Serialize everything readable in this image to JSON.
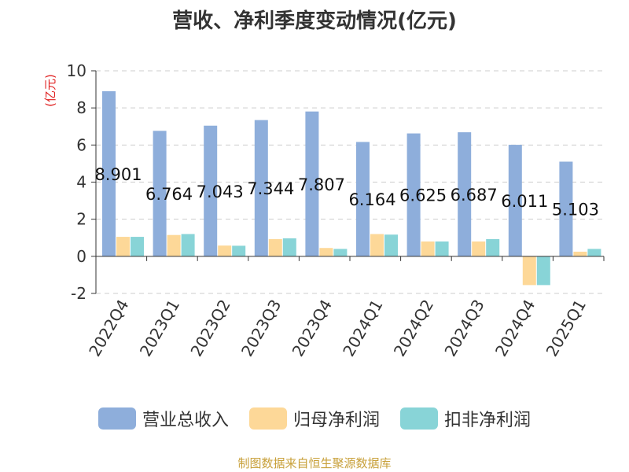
{
  "chart_data": {
    "type": "bar",
    "title": "营收、净利季度变动情况(亿元)",
    "ylabel": "(亿元)",
    "xlabel": "",
    "ylim": [
      -2,
      10
    ],
    "yticks": [
      10,
      8,
      6,
      4,
      2,
      0,
      -2
    ],
    "grid": true,
    "legend_position": "bottom",
    "categories": [
      "2022Q4",
      "2023Q1",
      "2023Q2",
      "2023Q3",
      "2023Q4",
      "2024Q1",
      "2024Q2",
      "2024Q3",
      "2024Q4",
      "2025Q1"
    ],
    "series": [
      {
        "name": "营业总收入",
        "color": "#8eaedb",
        "values": [
          8.901,
          6.764,
          7.043,
          7.344,
          7.807,
          6.164,
          6.625,
          6.687,
          6.011,
          5.103
        ]
      },
      {
        "name": "归母净利润",
        "color": "#fdd898",
        "values": [
          1.05,
          1.15,
          0.58,
          0.93,
          0.45,
          1.2,
          0.8,
          0.8,
          -1.55,
          0.25
        ]
      },
      {
        "name": "扣非净利润",
        "color": "#88d4d7",
        "values": [
          1.05,
          1.2,
          0.57,
          0.97,
          0.4,
          1.17,
          0.8,
          0.93,
          -1.55,
          0.4
        ]
      }
    ],
    "data_labels": [
      "8.901",
      "6.764",
      "7.043",
      "7.344",
      "7.807",
      "6.164",
      "6.625",
      "6.687",
      "6.011",
      "5.103"
    ]
  },
  "source_text": "制图数据来自恒生聚源数据库"
}
